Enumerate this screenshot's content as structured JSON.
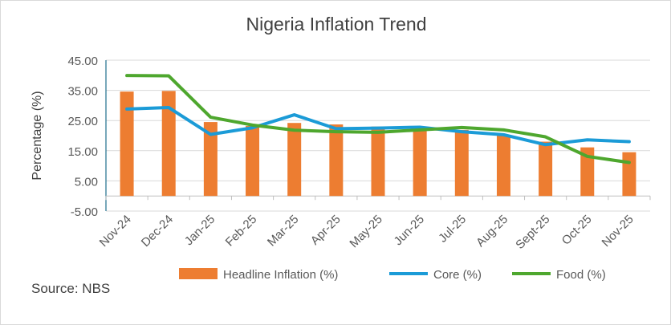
{
  "chart_data": {
    "type": "bar+line",
    "title": "Nigeria Inflation Trend",
    "ylabel": "Percentage (%)",
    "xlabel": "",
    "ylim": [
      -5,
      45
    ],
    "yticks": [
      "-5.00",
      "5.00",
      "15.00",
      "25.00",
      "35.00",
      "45.00"
    ],
    "grid": true,
    "legend_position": "bottom",
    "categories": [
      "Nov-24",
      "Dec-24",
      "Jan-25",
      "Feb-25",
      "Mar-25",
      "Apr-25",
      "May-25",
      "Jun-25",
      "Jul-25",
      "Aug-25",
      "Sept-25",
      "Oct-25",
      "Nov-25"
    ],
    "series": [
      {
        "name": "Headline Inflation (%)",
        "kind": "bar",
        "color": "#ED7D31",
        "values": [
          34.6,
          34.8,
          24.5,
          23.2,
          24.2,
          23.7,
          23.0,
          22.2,
          21.9,
          20.1,
          18.0,
          16.1,
          14.5
        ]
      },
      {
        "name": "Core (%)",
        "kind": "line",
        "color": "#1B9BD7",
        "values": [
          28.8,
          29.3,
          20.4,
          22.6,
          26.9,
          22.3,
          22.5,
          22.8,
          21.3,
          20.3,
          17.0,
          18.6,
          18.0
        ]
      },
      {
        "name": "Food (%)",
        "kind": "line",
        "color": "#4EA72E",
        "values": [
          39.9,
          39.8,
          26.1,
          23.5,
          21.8,
          21.3,
          21.1,
          21.9,
          22.7,
          21.9,
          19.6,
          13.1,
          11.1
        ]
      }
    ]
  },
  "source": "Source: NBS"
}
